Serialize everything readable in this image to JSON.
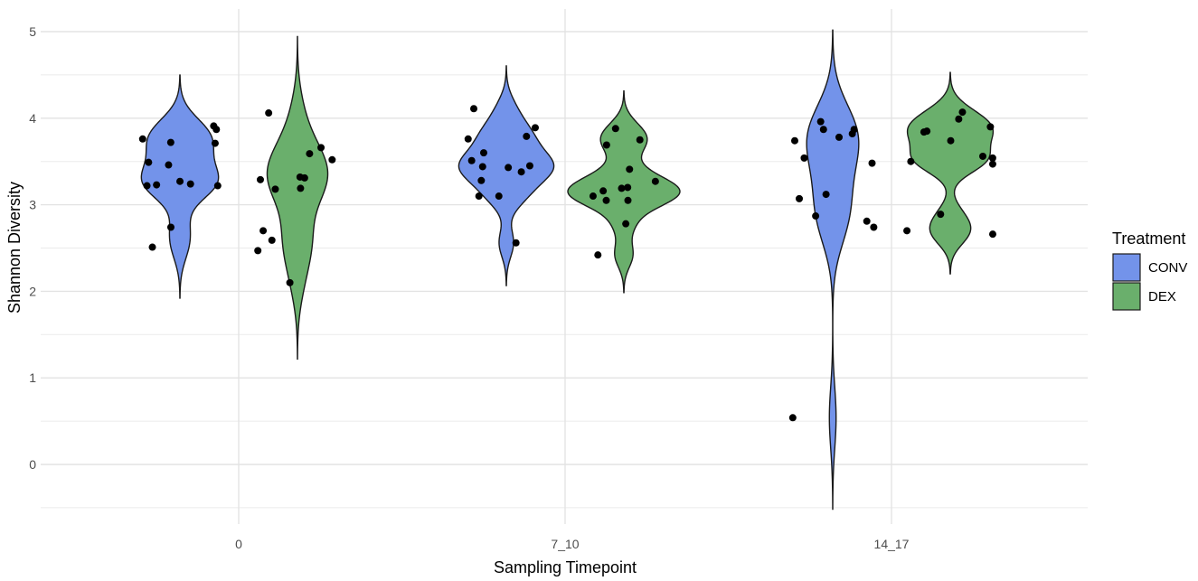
{
  "chart_data": {
    "type": "violin",
    "title": "",
    "xlabel": "Sampling Timepoint",
    "ylabel": "Shannon Diversity",
    "categories": [
      "0",
      "7_10",
      "14_17"
    ],
    "ylim": [
      -0.5,
      5.05
    ],
    "yticks": [
      0,
      1,
      2,
      3,
      4,
      5
    ],
    "grid": true,
    "legend": {
      "title": "Treatment",
      "position": "right"
    },
    "series": [
      {
        "name": "CONV",
        "color": "#7393ea",
        "groups": [
          {
            "category": "0",
            "points": [
              3.91,
              3.87,
              3.76,
              3.72,
              3.71,
              3.49,
              3.46,
              3.27,
              3.24,
              3.23,
              3.22,
              3.22,
              2.74,
              2.51
            ]
          },
          {
            "category": "7_10",
            "points": [
              4.11,
              3.89,
              3.79,
              3.76,
              3.6,
              3.51,
              3.45,
              3.44,
              3.43,
              3.38,
              3.28,
              3.1,
              3.1,
              2.56
            ]
          },
          {
            "category": "14_17",
            "points": [
              3.96,
              3.87,
              3.87,
              3.82,
              3.78,
              3.74,
              3.54,
              3.48,
              3.12,
              3.07,
              2.87,
              2.81,
              2.74,
              0.54
            ]
          }
        ]
      },
      {
        "name": "DEX",
        "color": "#6aaf6c",
        "groups": [
          {
            "category": "0",
            "points": [
              4.06,
              3.66,
              3.59,
              3.52,
              3.32,
              3.31,
              3.29,
              3.19,
              3.18,
              2.7,
              2.59,
              2.47,
              2.1
            ]
          },
          {
            "category": "7_10",
            "points": [
              3.88,
              3.75,
              3.69,
              3.41,
              3.27,
              3.2,
              3.19,
              3.16,
              3.1,
              3.05,
              3.05,
              2.78,
              2.42
            ]
          },
          {
            "category": "14_17",
            "points": [
              4.07,
              3.99,
              3.9,
              3.85,
              3.84,
              3.74,
              3.56,
              3.54,
              3.5,
              3.47,
              2.89,
              2.7,
              2.66
            ]
          }
        ]
      }
    ]
  }
}
